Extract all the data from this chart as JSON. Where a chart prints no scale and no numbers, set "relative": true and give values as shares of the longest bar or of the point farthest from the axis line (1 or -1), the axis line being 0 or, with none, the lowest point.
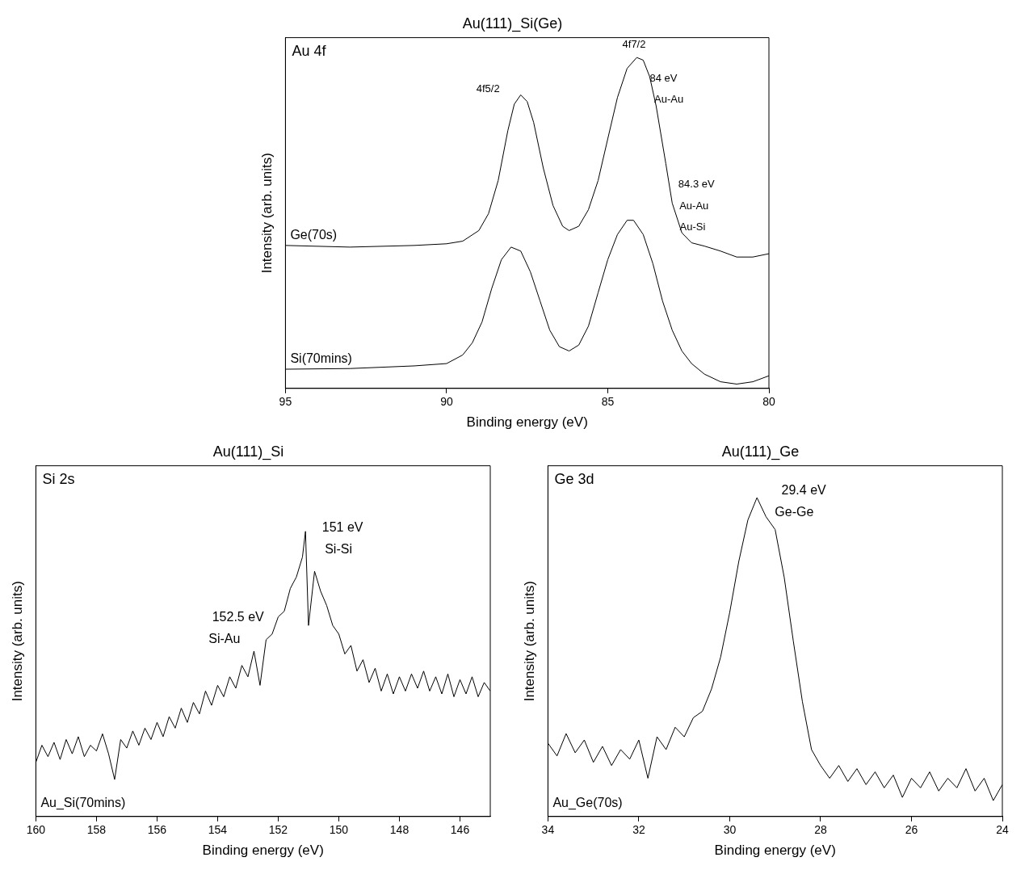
{
  "chart_data": [
    {
      "type": "line",
      "title": "Au(111)_Si(Ge)",
      "xlabel": "Binding energy (eV)",
      "ylabel": "Intensity (arb. units)",
      "relative": true,
      "xlim": [
        95,
        80
      ],
      "xticks": [
        95,
        90,
        85,
        80
      ],
      "grid": false,
      "legend": false,
      "marker": "none",
      "line_style": "solid",
      "annotations": [
        "Au 4f",
        "4f5/2",
        "4f7/2",
        "84 eV",
        "Au-Au",
        "84.3 eV",
        "Au-Au",
        "Au-Si"
      ],
      "series": [
        {
          "name": "Ge(70s)",
          "color": "#000000",
          "x": [
            95,
            93,
            91,
            90,
            89.5,
            89,
            88.7,
            88.4,
            88.1,
            87.9,
            87.7,
            87.5,
            87.3,
            87.0,
            86.7,
            86.4,
            86.2,
            85.9,
            85.6,
            85.3,
            85.0,
            84.7,
            84.4,
            84.1,
            83.9,
            83.7,
            83.5,
            83.2,
            83.0,
            82.7,
            82.4,
            82.0,
            81.5,
            81.0,
            80.5,
            80.0
          ],
          "values": [
            0.432,
            0.427,
            0.432,
            0.437,
            0.445,
            0.477,
            0.528,
            0.628,
            0.779,
            0.859,
            0.887,
            0.867,
            0.804,
            0.666,
            0.553,
            0.49,
            0.477,
            0.49,
            0.54,
            0.628,
            0.754,
            0.879,
            0.967,
            1.0,
            0.992,
            0.942,
            0.854,
            0.68,
            0.56,
            0.47,
            0.44,
            0.43,
            0.415,
            0.397,
            0.397,
            0.407
          ]
        },
        {
          "name": "Si(70mins)",
          "color": "#000000",
          "x": [
            95,
            93,
            91,
            90,
            89.5,
            89.2,
            88.9,
            88.6,
            88.3,
            88.0,
            87.7,
            87.4,
            87.1,
            86.8,
            86.5,
            86.2,
            85.9,
            85.6,
            85.3,
            85.0,
            84.7,
            84.4,
            84.2,
            83.9,
            83.6,
            83.3,
            83.0,
            82.7,
            82.4,
            82.0,
            81.5,
            81.0,
            80.5,
            80.0
          ],
          "values": [
            0.058,
            0.06,
            0.068,
            0.075,
            0.101,
            0.138,
            0.201,
            0.302,
            0.389,
            0.427,
            0.415,
            0.352,
            0.264,
            0.176,
            0.126,
            0.113,
            0.131,
            0.188,
            0.289,
            0.389,
            0.465,
            0.508,
            0.508,
            0.465,
            0.377,
            0.264,
            0.176,
            0.113,
            0.075,
            0.043,
            0.02,
            0.013,
            0.02,
            0.038
          ]
        }
      ]
    },
    {
      "type": "line",
      "title": "Au(111)_Si",
      "xlabel": "Binding energy (eV)",
      "ylabel": "Intensity (arb. units)",
      "relative": true,
      "xlim": [
        160,
        145
      ],
      "xticks": [
        160,
        158,
        156,
        154,
        152,
        150,
        148,
        146
      ],
      "grid": false,
      "legend": false,
      "marker": "none",
      "line_style": "solid",
      "annotations": [
        "Si 2s",
        "151 eV",
        "Si-Si",
        "152.5 eV",
        "Si-Au"
      ],
      "series": [
        {
          "name": "Au_Si(70mins)",
          "color": "#000000",
          "x": [
            160.0,
            159.8,
            159.6,
            159.4,
            159.2,
            159.0,
            158.8,
            158.6,
            158.4,
            158.2,
            158.0,
            157.8,
            157.6,
            157.4,
            157.2,
            157.0,
            156.8,
            156.6,
            156.4,
            156.2,
            156.0,
            155.8,
            155.6,
            155.4,
            155.2,
            155.0,
            154.8,
            154.6,
            154.4,
            154.2,
            154.0,
            153.8,
            153.6,
            153.4,
            153.2,
            153.0,
            152.8,
            152.6,
            152.4,
            152.2,
            152.0,
            151.8,
            151.6,
            151.4,
            151.2,
            151.1,
            151.0,
            150.8,
            150.6,
            150.4,
            150.2,
            150.0,
            149.8,
            149.6,
            149.4,
            149.2,
            149.0,
            148.8,
            148.6,
            148.4,
            148.2,
            148.0,
            147.8,
            147.6,
            147.4,
            147.2,
            147.0,
            146.8,
            146.6,
            146.4,
            146.2,
            146.0,
            145.8,
            145.6,
            145.4,
            145.2,
            145.0
          ],
          "values": [
            0.19,
            0.25,
            0.21,
            0.26,
            0.2,
            0.27,
            0.22,
            0.28,
            0.21,
            0.25,
            0.23,
            0.29,
            0.22,
            0.13,
            0.27,
            0.24,
            0.3,
            0.25,
            0.31,
            0.27,
            0.33,
            0.28,
            0.35,
            0.31,
            0.38,
            0.33,
            0.4,
            0.36,
            0.44,
            0.39,
            0.46,
            0.42,
            0.49,
            0.45,
            0.53,
            0.49,
            0.58,
            0.46,
            0.62,
            0.64,
            0.7,
            0.72,
            0.8,
            0.84,
            0.91,
            1.0,
            0.67,
            0.86,
            0.79,
            0.74,
            0.67,
            0.64,
            0.57,
            0.6,
            0.51,
            0.55,
            0.47,
            0.52,
            0.44,
            0.5,
            0.43,
            0.49,
            0.44,
            0.5,
            0.45,
            0.51,
            0.44,
            0.49,
            0.43,
            0.5,
            0.42,
            0.48,
            0.43,
            0.49,
            0.42,
            0.47,
            0.44
          ]
        }
      ]
    },
    {
      "type": "line",
      "title": "Au(111)_Ge",
      "xlabel": "Binding energy (eV)",
      "ylabel": "Intensity (arb. units)",
      "relative": true,
      "xlim": [
        34,
        24
      ],
      "xticks": [
        34,
        32,
        30,
        28,
        26,
        24
      ],
      "grid": false,
      "legend": false,
      "marker": "none",
      "line_style": "solid",
      "annotations": [
        "Ge 3d",
        "29.4 eV",
        "Ge-Ge"
      ],
      "series": [
        {
          "name": "Au_Ge(70s)",
          "color": "#000000",
          "x": [
            34.0,
            33.8,
            33.6,
            33.4,
            33.2,
            33.0,
            32.8,
            32.6,
            32.4,
            32.2,
            32.0,
            31.8,
            31.6,
            31.4,
            31.2,
            31.0,
            30.8,
            30.6,
            30.4,
            30.2,
            30.0,
            29.8,
            29.6,
            29.4,
            29.2,
            29.0,
            28.8,
            28.6,
            28.4,
            28.2,
            28.0,
            27.8,
            27.6,
            27.4,
            27.2,
            27.0,
            26.8,
            26.6,
            26.4,
            26.2,
            26.0,
            25.8,
            25.6,
            25.4,
            25.2,
            25.0,
            24.8,
            24.6,
            24.4,
            24.2,
            24.0
          ],
          "values": [
            0.23,
            0.19,
            0.26,
            0.2,
            0.24,
            0.17,
            0.22,
            0.16,
            0.21,
            0.18,
            0.24,
            0.12,
            0.25,
            0.21,
            0.28,
            0.25,
            0.31,
            0.33,
            0.4,
            0.5,
            0.64,
            0.8,
            0.93,
            1.0,
            0.94,
            0.9,
            0.75,
            0.55,
            0.36,
            0.21,
            0.16,
            0.12,
            0.16,
            0.11,
            0.15,
            0.1,
            0.14,
            0.09,
            0.13,
            0.06,
            0.12,
            0.09,
            0.14,
            0.08,
            0.12,
            0.09,
            0.15,
            0.08,
            0.12,
            0.05,
            0.1
          ]
        }
      ]
    }
  ]
}
